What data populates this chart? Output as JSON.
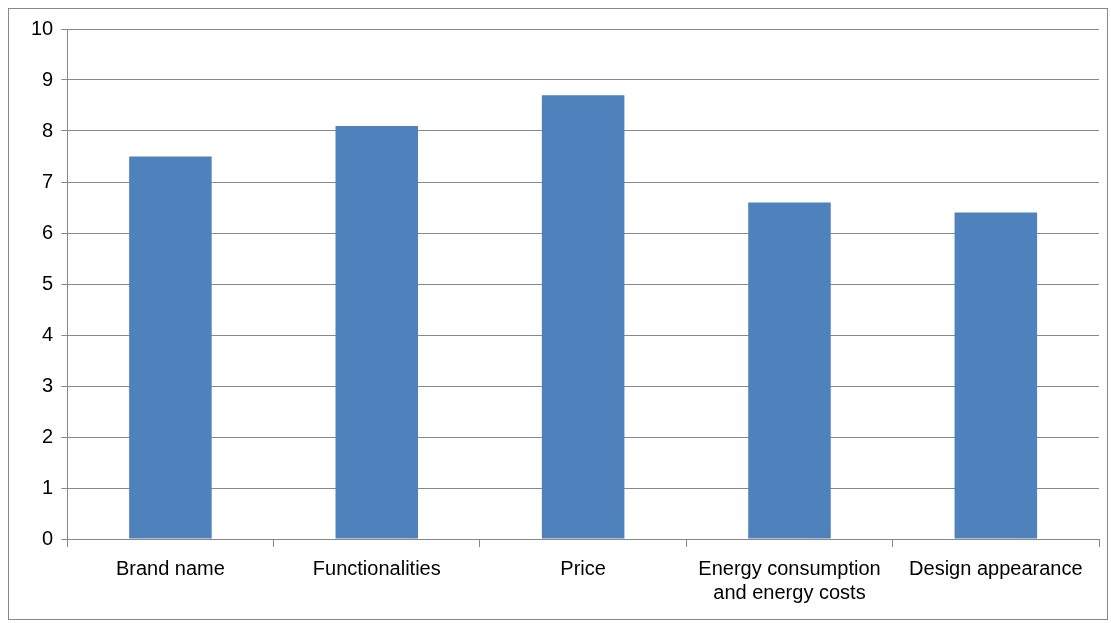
{
  "chart_data": {
    "type": "bar",
    "categories": [
      "Brand name",
      "Functionalities",
      "Price",
      "Energy consumption and energy costs",
      "Design appearance"
    ],
    "values": [
      7.5,
      8.1,
      8.7,
      6.6,
      6.4
    ],
    "color": "#4f81bd",
    "ylim": [
      0,
      10
    ],
    "yticks": [
      0,
      1,
      2,
      3,
      4,
      5,
      6,
      7,
      8,
      9,
      10
    ],
    "grid": "y",
    "legend": false
  }
}
